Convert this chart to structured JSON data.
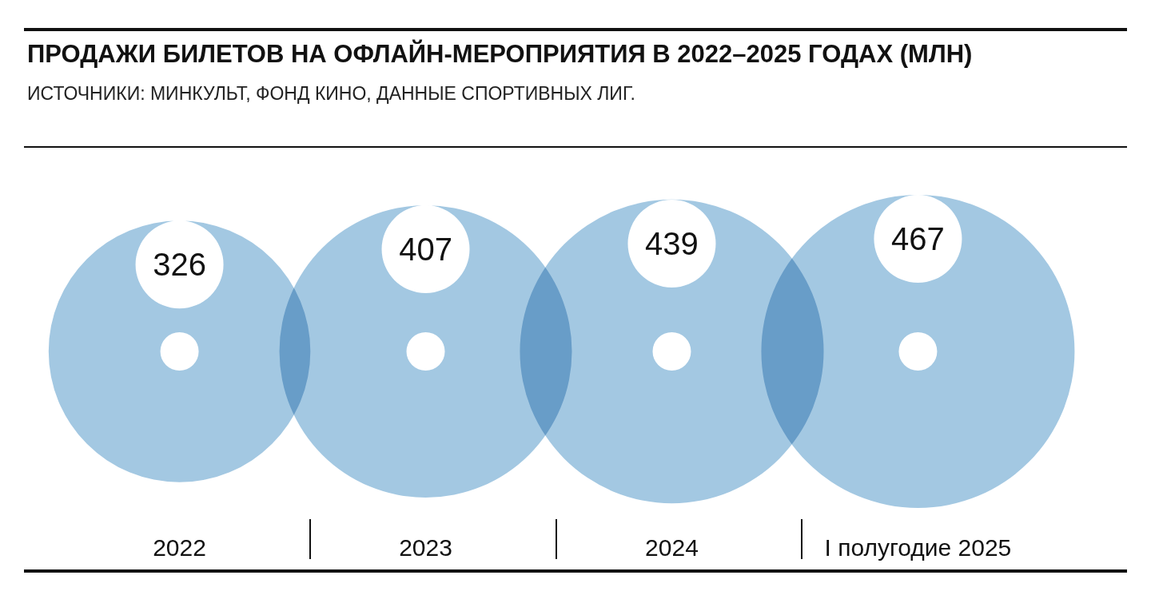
{
  "chart_data": {
    "type": "other",
    "title": "ПРОДАЖИ БИЛЕТОВ НА ОФЛАЙН-МЕРОПРИЯТИЯ В 2022–2025 ГОДАХ (МЛН)",
    "subtitle": "ИСТОЧНИКИ: МИНКУЛЬТ, ФОНД КИНО, ДАННЫЕ СПОРТИВНЫХ ЛИГ.",
    "categories": [
      "2022",
      "2023",
      "2024",
      "I полугодие 2025"
    ],
    "values": [
      326,
      407,
      439,
      467
    ],
    "color": "#a3c8e2",
    "data_labels": true
  }
}
